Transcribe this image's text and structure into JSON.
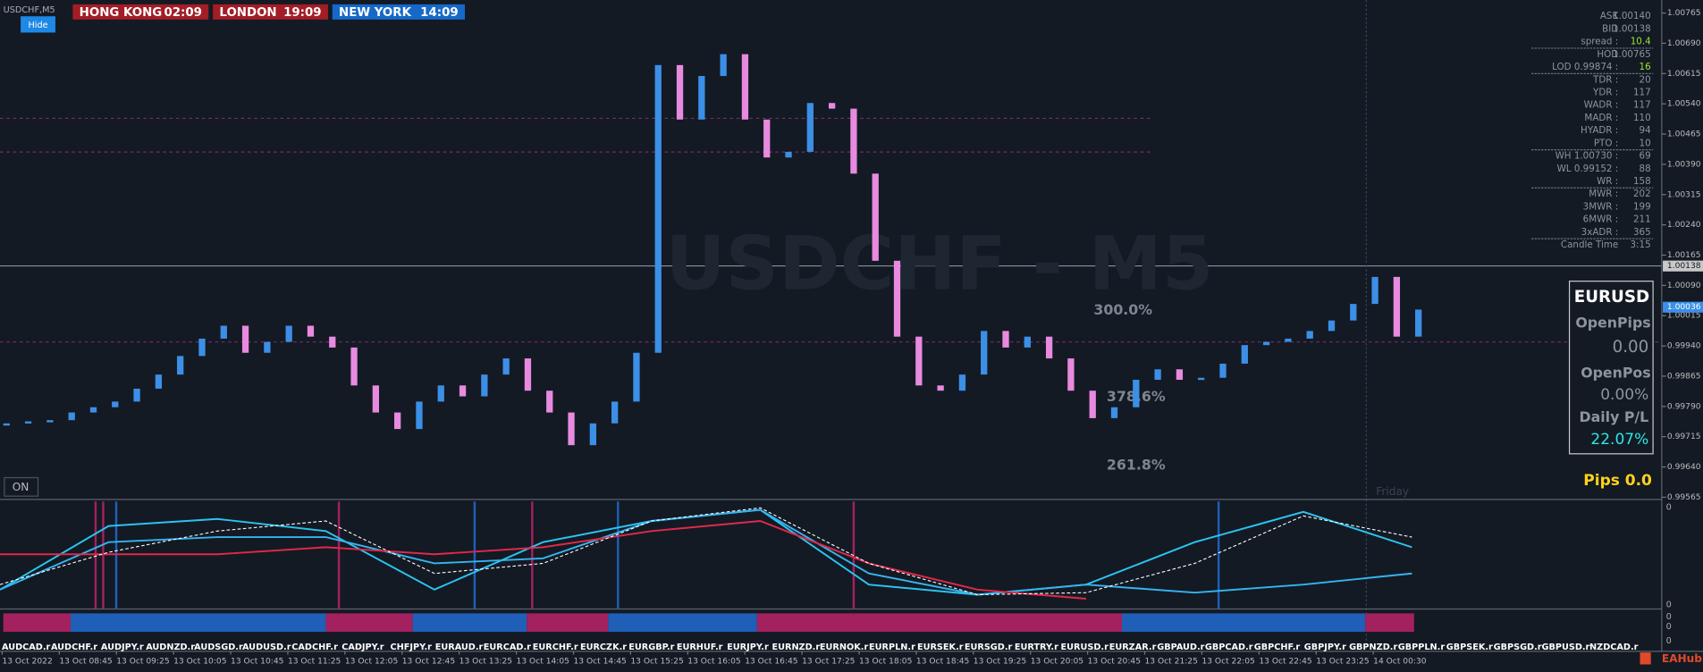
{
  "header": {
    "symbol": "USDCHF,M5",
    "hide": "Hide",
    "clocks": [
      {
        "city": "HONG KONG",
        "time": "02:09"
      },
      {
        "city": "LONDON",
        "time": "19:09"
      },
      {
        "city": "NEW YORK",
        "time": "14:09"
      }
    ]
  },
  "watermark": "USDCHF - M5",
  "price_axis": {
    "ticks": [
      1.00765,
      {
        "value": 1.0069,
        "label": "1.00690"
      },
      1.00615,
      {
        "value": 1.0054,
        "label": "1.00540"
      },
      1.00465,
      {
        "value": 1.0039,
        "label": "1.00390"
      },
      1.00315,
      {
        "value": 1.0024,
        "label": "1.00240"
      },
      1.00165,
      {
        "value": 1.0009,
        "label": "1.00090"
      },
      1.00015,
      {
        "value": 0.9994,
        "label": "0.99940"
      },
      0.99865,
      {
        "value": 0.9979,
        "label": "0.99790"
      },
      0.99715,
      {
        "value": 0.9964,
        "label": "0.99640"
      },
      0.99565
    ],
    "bid": 1.00138,
    "line_price": 1.00036
  },
  "candles": {
    "up_color": "#3c8fe6",
    "down_color": "#e88ae0",
    "closes": [
      0.99748,
      0.99753,
      0.99756,
      0.99775,
      0.99788,
      0.99802,
      0.99834,
      0.99869,
      0.99915,
      0.99958,
      0.9999,
      0.99923,
      0.9995,
      0.9999,
      0.99963,
      0.99936,
      0.99842,
      0.99775,
      0.99734,
      0.99802,
      0.99842,
      0.99815,
      0.99869,
      0.99909,
      0.99829,
      0.99775,
      0.99694,
      0.99748,
      0.99802,
      0.99923,
      1.00636,
      1.00501,
      1.00609,
      1.00663,
      1.00501,
      1.00407,
      1.00421,
      1.00542,
      1.00528,
      1.00367,
      1.00151,
      0.99963,
      0.99842,
      0.99829,
      0.99869,
      0.99977,
      0.99936,
      0.99963,
      0.99909,
      0.99829,
      0.99761,
      0.99788,
      0.99856,
      0.99882,
      0.99856,
      0.99861,
      0.99896,
      0.99942,
      0.9995,
      0.99958,
      0.99977,
      1.00003,
      1.00044,
      1.00111,
      0.99963,
      1.0003
    ]
  },
  "fib": [
    "300.0%",
    "378.6%",
    "261.8%"
  ],
  "info": [
    {
      "label": "ASK",
      "value": "1.00140"
    },
    {
      "label": "BID",
      "value": "1.00138"
    },
    {
      "label": "spread :",
      "value": "10.4"
    },
    {
      "label": "HOD",
      "value": "1.00765"
    },
    {
      "label": "LOD 0.99874 :",
      "value": "16"
    },
    {
      "label": "TDR :",
      "value": "20"
    },
    {
      "label": "YDR :",
      "value": "117"
    },
    {
      "label": "WADR :",
      "value": "117"
    },
    {
      "label": "MADR :",
      "value": "110"
    },
    {
      "label": "HYADR :",
      "value": "94"
    },
    {
      "label": "PTO :",
      "value": "10"
    },
    {
      "label": "WH 1.00730 :",
      "value": "69"
    },
    {
      "label": "WL 0.99152 :",
      "value": "88"
    },
    {
      "label": "WR :",
      "value": "158"
    },
    {
      "label": "MWR :",
      "value": "202"
    },
    {
      "label": "3MWR :",
      "value": "199"
    },
    {
      "label": "6MWR :",
      "value": "211"
    },
    {
      "label": "3xADR :",
      "value": "365"
    },
    {
      "label": "Candle Time",
      "value": "3:15"
    }
  ],
  "box": {
    "symbol": "EURUSD",
    "open_pips_label": "OpenPips",
    "open_pips": "0.00",
    "open_pos_label": "OpenPos",
    "open_pos": "0.00%",
    "daily_label": "Daily P/L",
    "daily": "22.07%"
  },
  "pips": "Pips 0.0",
  "friday": "Friday",
  "on": "ON",
  "indicator": {
    "zero": "0",
    "series": [
      {
        "name": "cyan",
        "color": "#2bc4f0",
        "values": [
          16,
          79,
          86,
          74,
          16,
          63,
          84,
          95,
          21,
          11,
          21,
          63,
          93,
          58
        ]
      },
      {
        "name": "blue",
        "color": "#36b4ee",
        "values": [
          16,
          63,
          68,
          68,
          42,
          47,
          84,
          95,
          32,
          11,
          21,
          13,
          21,
          32
        ]
      },
      {
        "name": "red",
        "color": "#e0294a",
        "values": [
          51,
          51,
          51,
          58,
          51,
          58,
          74,
          84,
          42,
          16,
          7
        ]
      },
      {
        "name": "signal",
        "color": "#ffffff",
        "values": [
          21,
          53,
          74,
          84,
          32,
          42,
          84,
          97,
          42,
          11,
          13,
          42,
          89,
          68
        ]
      }
    ]
  },
  "symbols": [
    "AUDCAD.r",
    "AUDCHF.r",
    "AUDJPY.r",
    "AUDNZD.r",
    "AUDSGD.r",
    "AUDUSD.r",
    "CADCHF.r",
    "CADJPY.r",
    "CHFJPY.r",
    "EURAUD.r",
    "EURCAD.r",
    "EURCHF.r",
    "EURCZK.r",
    "EURGBP.r",
    "EURHUF.r",
    "EURJPY.r",
    "EURNZD.r",
    "EURNOK.r",
    "EURPLN.r",
    "EURSEK.r",
    "EURSGD.r",
    "EURTRY.r",
    "EURUSD.r",
    "EURZAR.r",
    "GBPAUD.r",
    "GBPCAD.r",
    "GBPCHF.r",
    "GBPJPY.r",
    "GBPNZD.r",
    "GBPPLN.r",
    "GBPSEK.r",
    "GBPSGD.r",
    "GBPUSD.r",
    "NZDCAD.r"
  ],
  "times": [
    "13 Oct 2022",
    "13 Oct 08:45",
    "13 Oct 09:25",
    "13 Oct 10:05",
    "13 Oct 10:45",
    "13 Oct 11:25",
    "13 Oct 12:05",
    "13 Oct 12:45",
    "13 Oct 13:25",
    "13 Oct 14:05",
    "13 Oct 14:45",
    "13 Oct 15:25",
    "13 Oct 16:05",
    "13 Oct 16:45",
    "13 Oct 17:25",
    "13 Oct 18:05",
    "13 Oct 18:45",
    "13 Oct 19:25",
    "13 Oct 20:05",
    "13 Oct 20:45",
    "13 Oct 21:25",
    "13 Oct 22:05",
    "13 Oct 22:45",
    "13 Oct 23:25",
    "14 Oct 00:30"
  ],
  "brand": "EAHub"
}
